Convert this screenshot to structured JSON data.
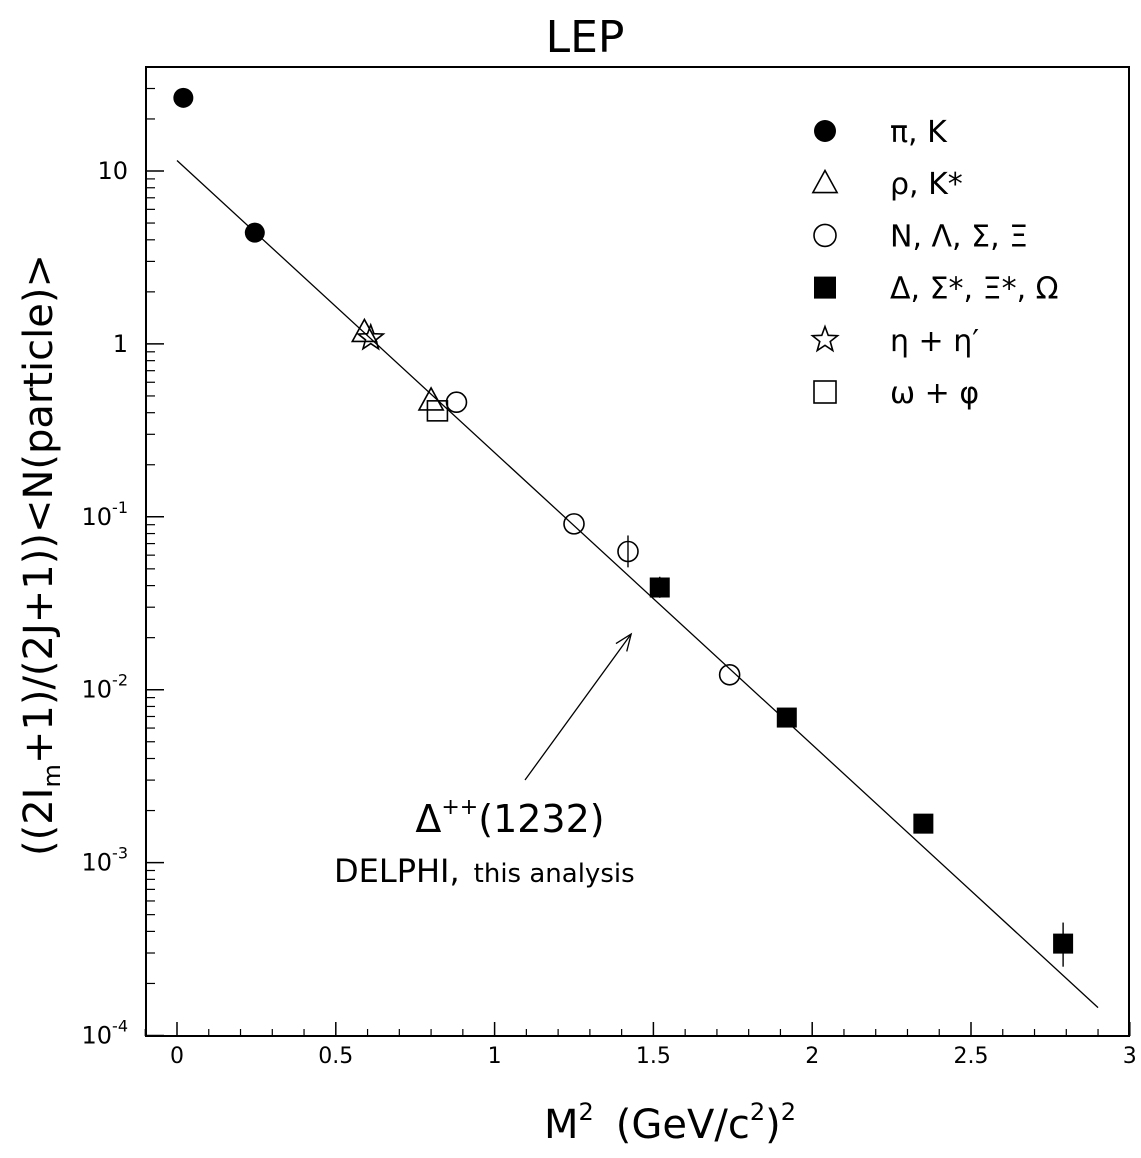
{
  "chart_data": {
    "type": "scatter",
    "title": "LEP",
    "xlabel_main": "M",
    "xlabel_sup": "2",
    "xlabel_units": "(GeV/c",
    "xlabel_units_sup": "2",
    "xlabel_units_close": ")",
    "xlabel_units_close_sup": "2",
    "ylabel_open": "((2I",
    "ylabel_sub": "m",
    "ylabel_rest": "+1)/(2J+1))<N(particle)>",
    "x_scale": "linear",
    "y_scale": "log",
    "xlim": [
      -0.1,
      3.0
    ],
    "ylim": [
      0.0001,
      50
    ],
    "x_ticks": [
      {
        "value": 0,
        "label": "0"
      },
      {
        "value": 0.5,
        "label": "0.5"
      },
      {
        "value": 1,
        "label": "1"
      },
      {
        "value": 1.5,
        "label": "1.5"
      },
      {
        "value": 2,
        "label": "2"
      },
      {
        "value": 2.5,
        "label": "2.5"
      },
      {
        "value": 3,
        "label": "3"
      }
    ],
    "y_ticks": [
      {
        "value": 10,
        "base": "10",
        "exp": ""
      },
      {
        "value": 1,
        "base": "1",
        "exp": ""
      },
      {
        "value": 0.1,
        "base": "10",
        "exp": "-1"
      },
      {
        "value": 0.01,
        "base": "10",
        "exp": "-2"
      },
      {
        "value": 0.001,
        "base": "10",
        "exp": "-3"
      },
      {
        "value": 0.0001,
        "base": "10",
        "exp": "-4"
      }
    ],
    "grid": false,
    "legend_position": "top-right",
    "series": [
      {
        "name": "π, K",
        "marker": "filled-circle",
        "points": [
          {
            "x": 0.02,
            "y": 26.5
          },
          {
            "x": 0.245,
            "y": 4.4
          }
        ]
      },
      {
        "name": "ρ, K*",
        "marker": "open-triangle",
        "points": [
          {
            "x": 0.59,
            "y": 1.17
          },
          {
            "x": 0.8,
            "y": 0.47
          }
        ]
      },
      {
        "name": "N, Λ, Σ, Ξ",
        "marker": "open-circle",
        "points": [
          {
            "x": 0.88,
            "y": 0.46
          },
          {
            "x": 1.25,
            "y": 0.091
          },
          {
            "x": 1.42,
            "y": 0.063,
            "ylow": 0.051,
            "yhigh": 0.078
          },
          {
            "x": 1.74,
            "y": 0.0122
          }
        ]
      },
      {
        "name": "Δ, Σ*, Ξ*, Ω",
        "marker": "filled-square",
        "points": [
          {
            "x": 1.52,
            "y": 0.039,
            "ylow": 0.034,
            "yhigh": 0.045
          },
          {
            "x": 1.92,
            "y": 0.0069
          },
          {
            "x": 2.35,
            "y": 0.00168
          },
          {
            "x": 2.79,
            "y": 0.00034,
            "ylow": 0.00025,
            "yhigh": 0.00045
          }
        ]
      },
      {
        "name": "η + η′",
        "marker": "open-star",
        "points": [
          {
            "x": 0.61,
            "y": 1.08
          }
        ]
      },
      {
        "name": "ω + φ",
        "marker": "open-square",
        "points": [
          {
            "x": 0.82,
            "y": 0.41
          }
        ]
      }
    ],
    "fit_line": {
      "x_start": 0.0,
      "y_start": 11.5,
      "x_end": 2.9,
      "y_end": 0.000145
    },
    "annotation": {
      "label_main": "Δ",
      "label_sup": "++",
      "label_paren": "(1232)",
      "label_experiment": "DELPHI,",
      "label_note": "this analysis",
      "arrow_target": {
        "x": 1.43,
        "y": 0.021
      }
    }
  }
}
